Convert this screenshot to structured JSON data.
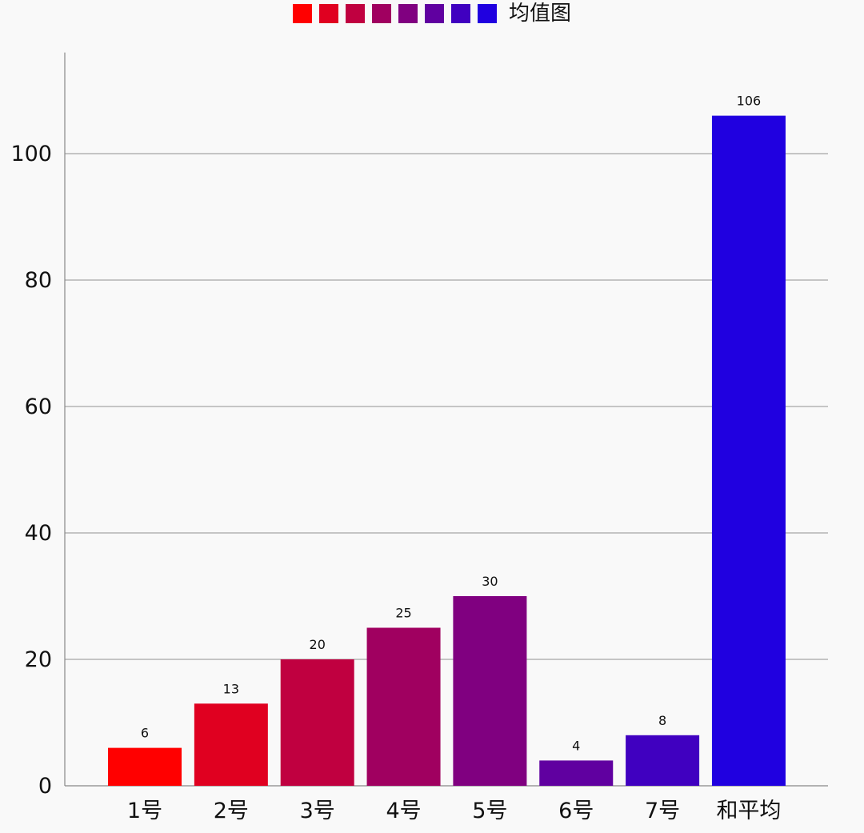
{
  "legend": {
    "label": "均值图",
    "colors": [
      "#ff0000",
      "#e00020",
      "#c00040",
      "#a00060",
      "#800080",
      "#6000a0",
      "#4000c0",
      "#2000e0"
    ]
  },
  "chart_data": {
    "type": "bar",
    "categories": [
      "1号",
      "2号",
      "3号",
      "4号",
      "5号",
      "6号",
      "7号",
      "和平均"
    ],
    "series": [
      {
        "name": "均值图",
        "values": [
          6,
          13,
          20,
          25,
          30,
          4,
          8,
          106
        ],
        "value_labels": [
          "6",
          "13",
          "20",
          "25",
          "30",
          "4",
          "8",
          "106"
        ]
      }
    ],
    "bar_colors": [
      "#ff0000",
      "#e00020",
      "#c00040",
      "#a00060",
      "#800080",
      "#6000a0",
      "#4000c0",
      "#2000e0"
    ],
    "y_ticks": [
      0,
      20,
      40,
      60,
      80,
      100
    ],
    "ylim": [
      0,
      116
    ],
    "grid": true,
    "legend_position": "top-center",
    "title": "",
    "xlabel": "",
    "ylabel": ""
  }
}
